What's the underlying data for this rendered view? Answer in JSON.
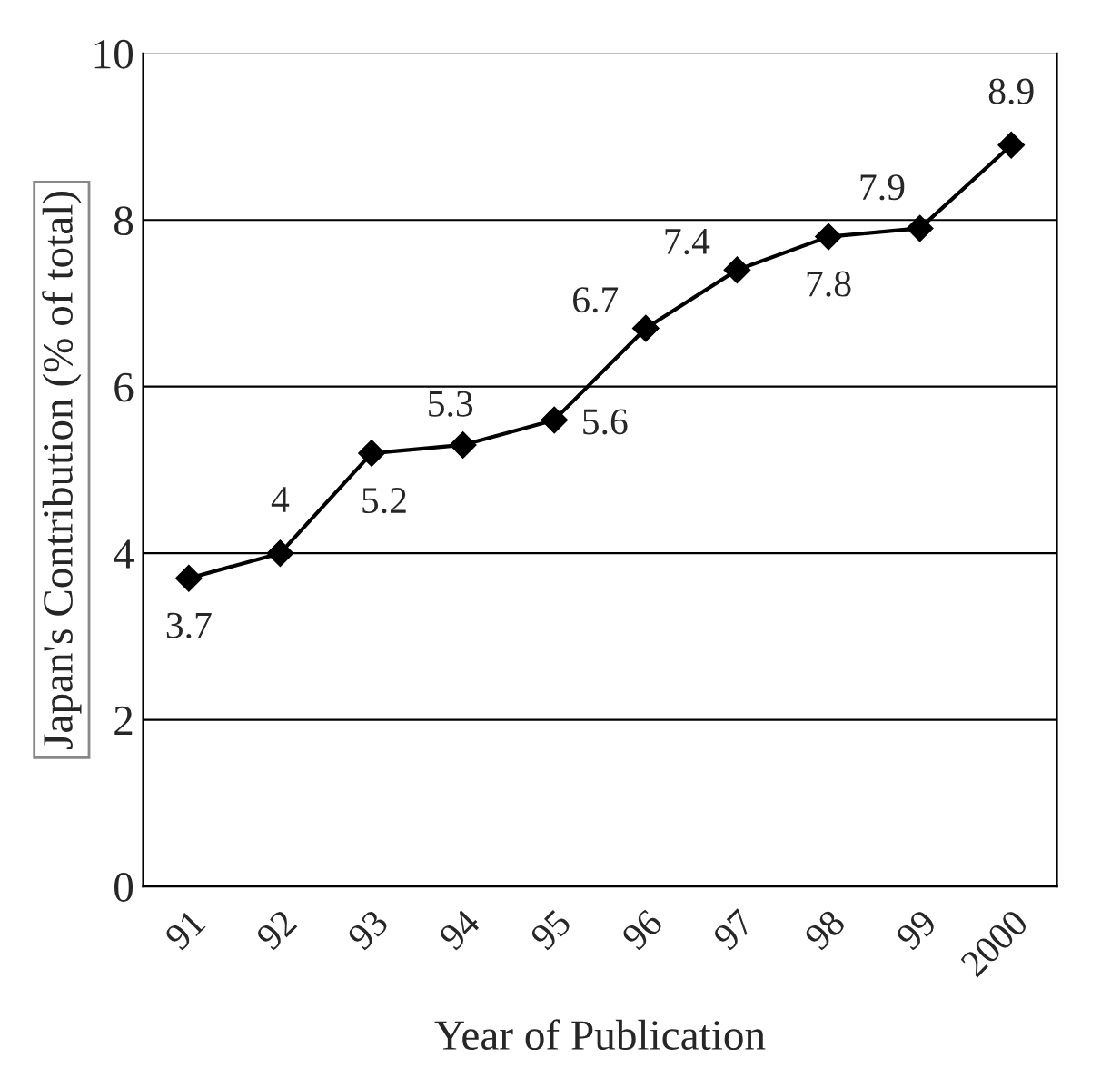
{
  "chart_data": {
    "type": "line",
    "xlabel": "Year of Publication",
    "ylabel": "Japan's Contribution (% of total)",
    "categories": [
      "91",
      "92",
      "93",
      "94",
      "95",
      "96",
      "97",
      "98",
      "99",
      "2000"
    ],
    "series": [
      {
        "color": "#000000",
        "values": [
          3.7,
          4,
          5.2,
          5.3,
          5.6,
          6.7,
          7.4,
          7.8,
          7.9,
          8.9
        ]
      }
    ],
    "ylim": [
      0,
      10
    ],
    "yticks": [
      0,
      2,
      4,
      6,
      8,
      10
    ],
    "grid": "y",
    "marker": "diamond",
    "line_style": "solid",
    "data_labels": true
  }
}
